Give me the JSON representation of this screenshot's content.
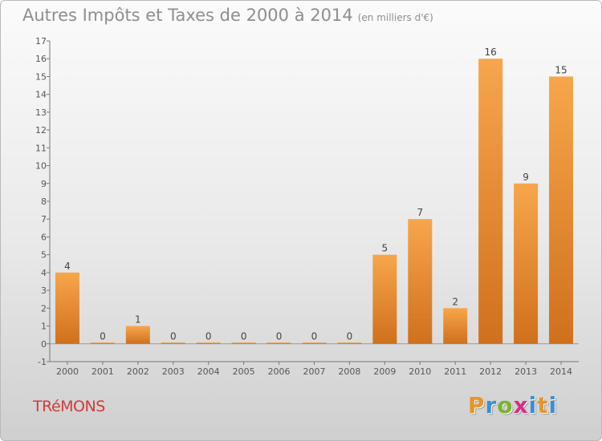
{
  "title": "Autres Impôts et Taxes de 2000 à 2014",
  "unit_label": "(en milliers d'€)",
  "commune": "TRéMONS",
  "logo": {
    "letters": [
      "P",
      "r",
      "o",
      "x",
      "i",
      "t",
      "i"
    ],
    "colors": [
      "#e9932a",
      "#3a8fd6",
      "#7ab52b",
      "#d92e8a",
      "#3a8fd6",
      "#e9932a",
      "#3a8fd6"
    ]
  },
  "colors": {
    "bar_light": "#f7a64c",
    "bar_dark": "#d0701c",
    "title": "#8f8f8f",
    "commune": "#d23a3a"
  },
  "chart_data": {
    "type": "bar",
    "categories": [
      "2000",
      "2001",
      "2002",
      "2003",
      "2004",
      "2005",
      "2006",
      "2007",
      "2008",
      "2009",
      "2010",
      "2011",
      "2012",
      "2013",
      "2014"
    ],
    "values": [
      4,
      0,
      1,
      0,
      0,
      0,
      0,
      0,
      0,
      5,
      7,
      2,
      16,
      9,
      15
    ],
    "ylim": [
      -1,
      17
    ],
    "yticks": [
      -1,
      0,
      1,
      2,
      3,
      4,
      5,
      6,
      7,
      8,
      9,
      10,
      11,
      12,
      13,
      14,
      15,
      16,
      17
    ],
    "value_labels": [
      "4",
      "0",
      "1",
      "0",
      "0",
      "0",
      "0",
      "0",
      "0",
      "5",
      "7",
      "2",
      "16",
      "9",
      "15"
    ],
    "grid": false,
    "legend": "none"
  }
}
